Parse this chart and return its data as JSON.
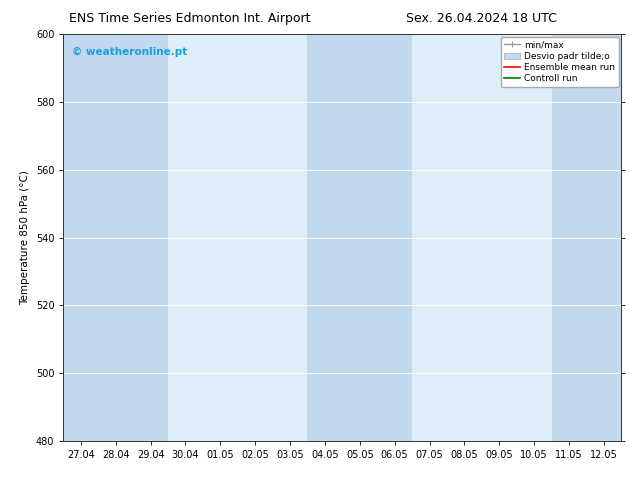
{
  "title_left": "ENS Time Series Edmonton Int. Airport",
  "title_right": "Sex. 26.04.2024 18 UTC",
  "ylabel": "Temperature 850 hPa (°C)",
  "xlim_dates": [
    "27.04",
    "28.04",
    "29.04",
    "30.04",
    "01.05",
    "02.05",
    "03.05",
    "04.05",
    "05.05",
    "06.05",
    "07.05",
    "08.05",
    "09.05",
    "10.05",
    "11.05",
    "12.05"
  ],
  "ylim": [
    480,
    600
  ],
  "yticks": [
    480,
    500,
    520,
    540,
    560,
    580,
    600
  ],
  "background_color": "#ffffff",
  "plot_bg_color": "#ddeef8",
  "shaded_color": "#c2d8ed",
  "watermark_text": "© weatheronline.pt",
  "watermark_color": "#1a9fe0",
  "legend_labels": [
    "min/max",
    "Desvio padr tilde;o",
    "Ensemble mean run",
    "Controll run"
  ],
  "title_fontsize": 9,
  "axis_fontsize": 7.5,
  "tick_fontsize": 7
}
